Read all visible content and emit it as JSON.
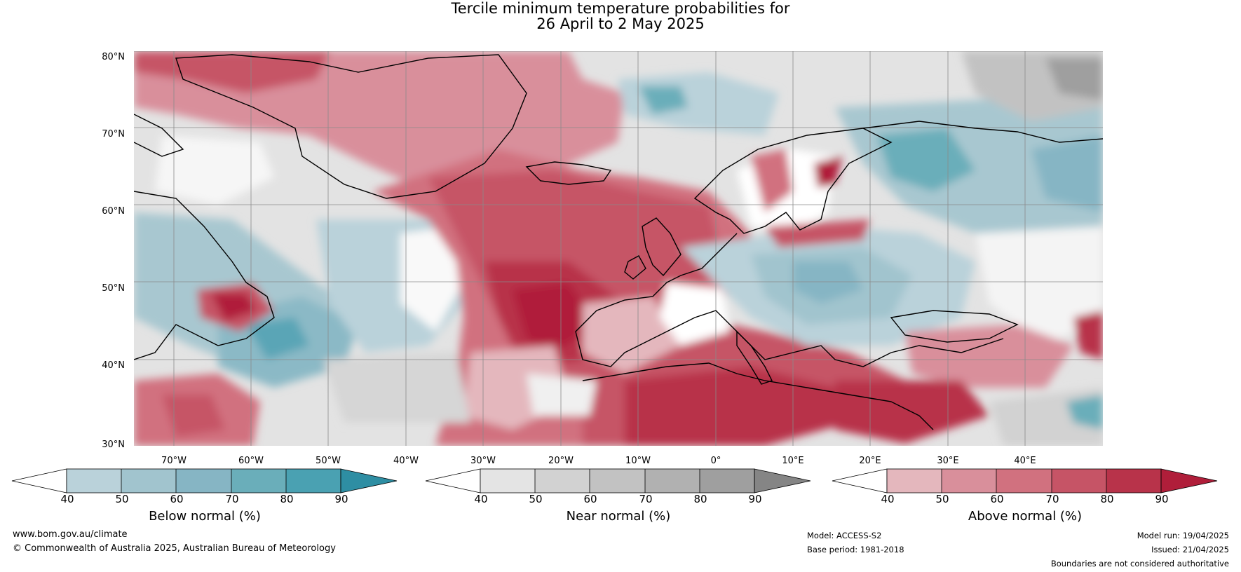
{
  "title": {
    "line1": "Tercile minimum temperature probabilities for",
    "line2": "26 April to 2 May 2025"
  },
  "axes": {
    "lat_labels": [
      "80°N",
      "70°N",
      "60°N",
      "50°N",
      "40°N",
      "30°N"
    ],
    "lon_labels": [
      "70°W",
      "60°W",
      "50°W",
      "40°W",
      "30°W",
      "20°W",
      "10°W",
      "0°",
      "10°E",
      "20°E",
      "30°E",
      "40°E"
    ]
  },
  "colorbars": [
    {
      "name": "below",
      "title": "Below normal (%)",
      "ticks": [
        "40",
        "50",
        "60",
        "70",
        "80",
        "90"
      ],
      "colors": [
        "#ffffff",
        "#bad2da",
        "#a1c4ce",
        "#86b5c4",
        "#6aaeba",
        "#4aa1b2",
        "#2e8ea3"
      ]
    },
    {
      "name": "near",
      "title": "Near normal (%)",
      "ticks": [
        "40",
        "50",
        "60",
        "70",
        "80",
        "90"
      ],
      "colors": [
        "#ffffff",
        "#e4e4e4",
        "#d2d2d2",
        "#c2c2c2",
        "#b1b1b1",
        "#9f9f9f",
        "#858585"
      ]
    },
    {
      "name": "above",
      "title": "Above normal (%)",
      "ticks": [
        "40",
        "50",
        "60",
        "70",
        "80",
        "90"
      ],
      "colors": [
        "#ffffff",
        "#e4b7bd",
        "#d98f9b",
        "#d1717f",
        "#c65466",
        "#b8334a",
        "#b01e3a"
      ]
    }
  ],
  "footer": {
    "url": "www.bom.gov.au/climate",
    "copyright": "© Commonwealth of Australia 2025, Australian Bureau of Meteorology",
    "model": "Model: ACCESS-S2",
    "base_period": "Base period: 1981-2018",
    "model_run": "Model run: 19/04/2025",
    "issued": "Issued: 21/04/2025",
    "disclaimer": "Boundaries are not considered authoritative"
  }
}
